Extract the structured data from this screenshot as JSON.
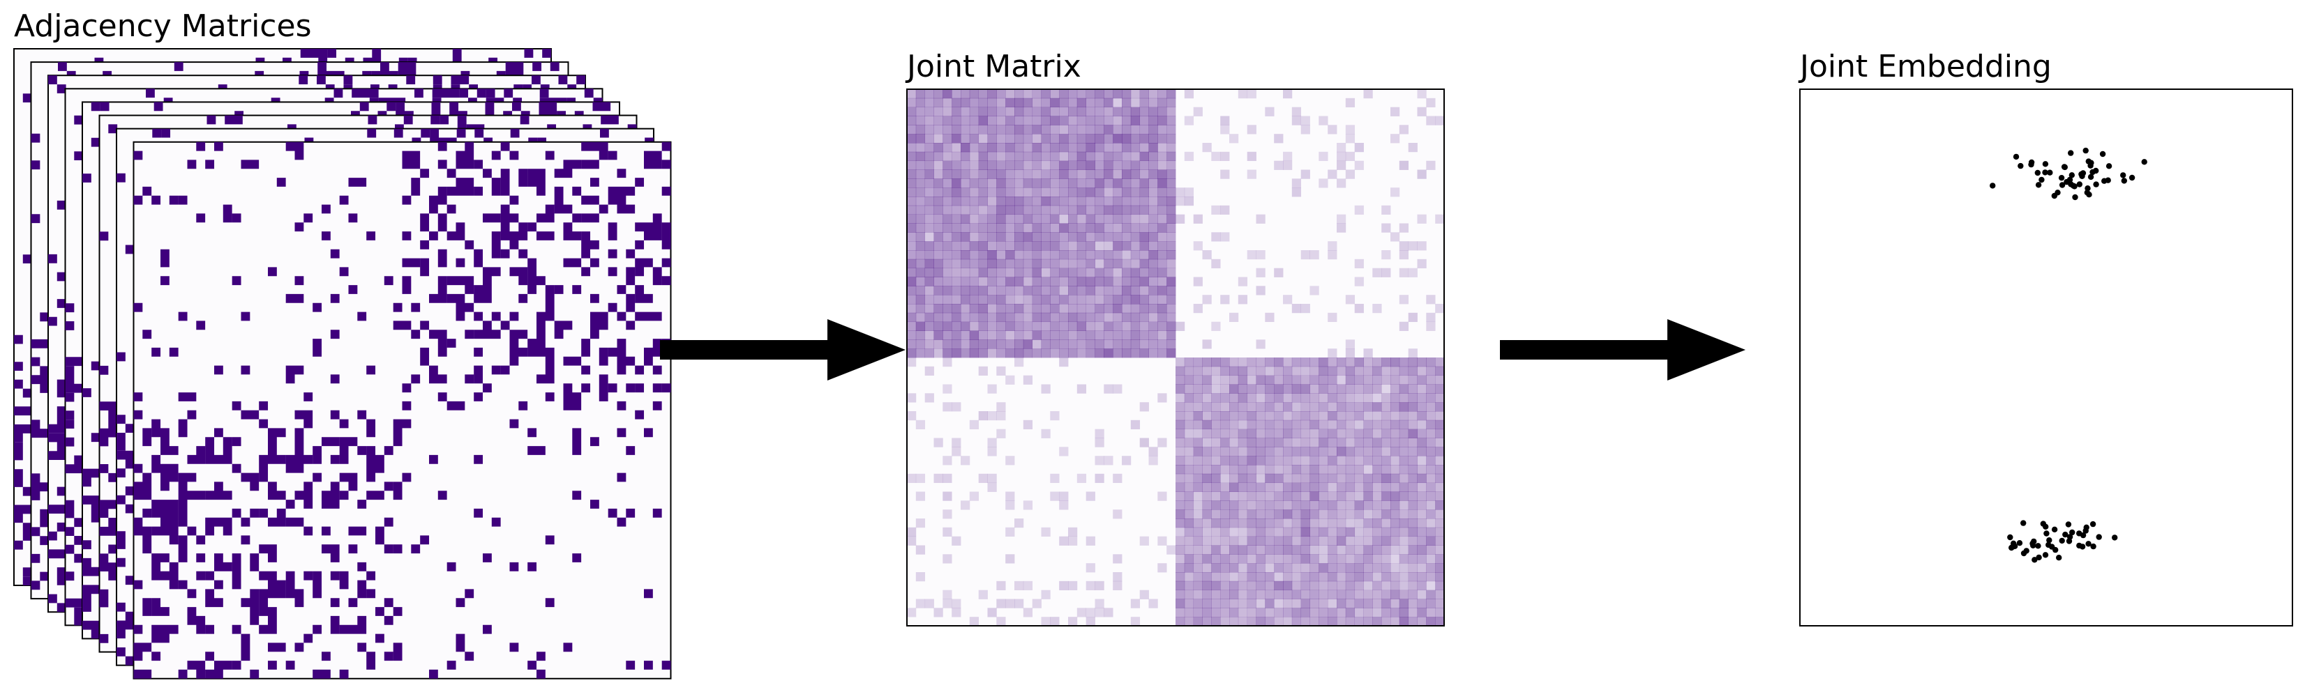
{
  "titles": {
    "adjacency": "Adjacency Matrices",
    "joint_matrix": "Joint Matrix",
    "joint_embedding": "Joint Embedding"
  },
  "colors": {
    "edge": "#3f007d",
    "background": "#fcfbfd",
    "frame": "#000000",
    "arrow": "#000000",
    "point": "#000000"
  },
  "adjacency": {
    "layers": 8,
    "nodes": 60,
    "blocks": 2,
    "block_edge_probability": {
      "within": 0.05,
      "between": 0.35
    }
  },
  "joint_matrix": {
    "nodes": 60,
    "block_mean_weight": {
      "within_upper": 0.45,
      "within_lower": 0.35,
      "between": 0.05
    }
  },
  "joint_embedding": {
    "clusters": [
      {
        "name": "",
        "points": 48
      },
      {
        "name": "",
        "points": 42
      }
    ]
  }
}
